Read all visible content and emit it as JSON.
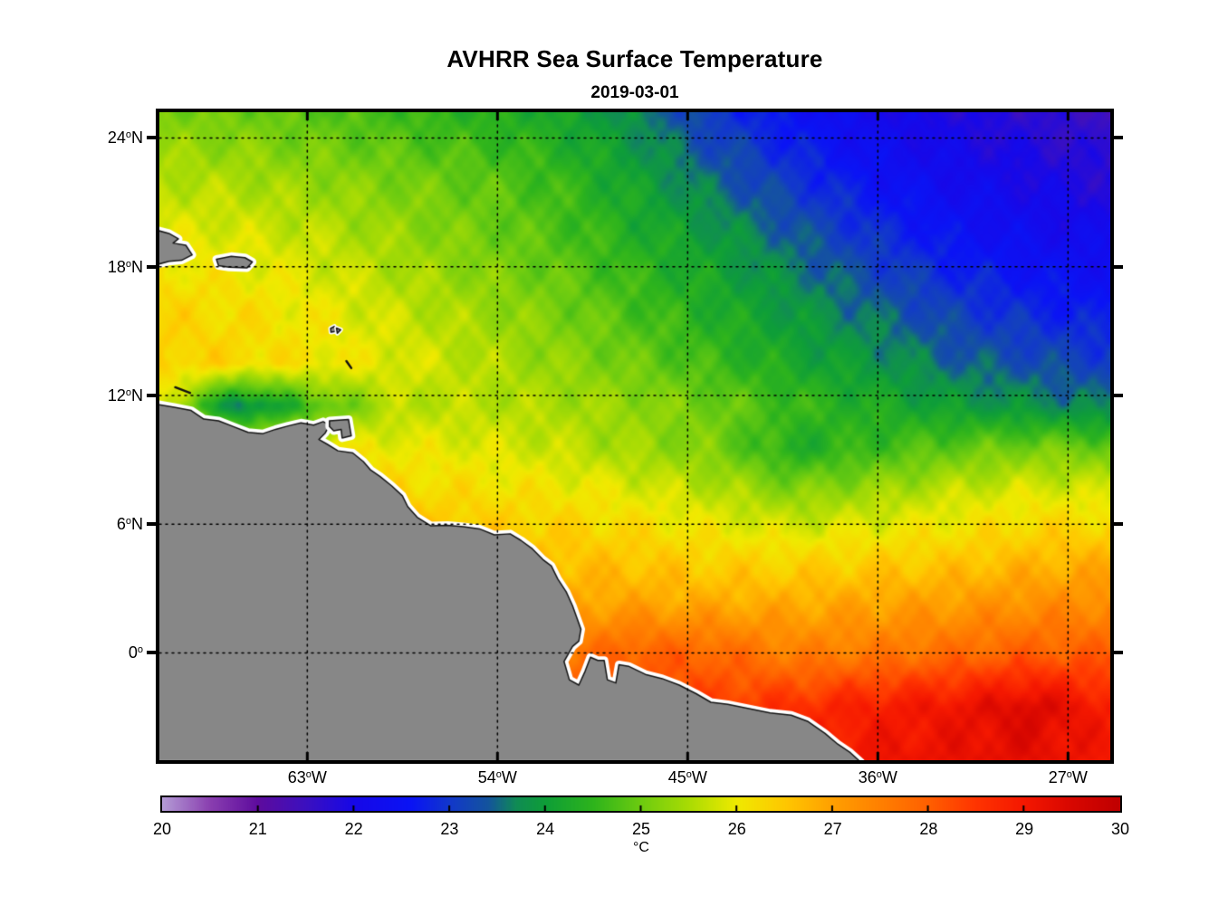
{
  "figure": {
    "title": "AVHRR Sea Surface Temperature",
    "subtitle": "2019-03-01"
  },
  "axes": {
    "lon_range": [
      -70,
      -25
    ],
    "lat_range": [
      -5,
      25.2
    ],
    "deg_symbol": "o",
    "x_ticks": [
      {
        "num": "63",
        "suffix": "W",
        "lon": -63
      },
      {
        "num": "54",
        "suffix": "W",
        "lon": -54
      },
      {
        "num": "45",
        "suffix": "W",
        "lon": -45
      },
      {
        "num": "36",
        "suffix": "W",
        "lon": -36
      },
      {
        "num": "27",
        "suffix": "W",
        "lon": -27
      }
    ],
    "y_ticks": [
      {
        "num": "24",
        "suffix": "N",
        "lat": 24
      },
      {
        "num": "18",
        "suffix": "N",
        "lat": 18
      },
      {
        "num": "12",
        "suffix": "N",
        "lat": 12
      },
      {
        "num": "6",
        "suffix": "N",
        "lat": 6
      },
      {
        "num": "0",
        "suffix": "",
        "lat": 0
      }
    ]
  },
  "colorbar": {
    "min": 20,
    "max": 30,
    "tick_labels": [
      "20",
      "21",
      "22",
      "23",
      "24",
      "25",
      "26",
      "27",
      "28",
      "29",
      "30"
    ],
    "inner_tick_values": [
      21,
      22,
      23,
      24,
      25,
      26,
      27,
      28,
      29
    ],
    "unit": "°C"
  },
  "colors": {
    "background": "#ffffff",
    "text": "#000000",
    "land_fill": "#878787",
    "land_outline": "#141414",
    "coast_buffer": "#ffffff",
    "gridline": "#000000",
    "axis": "#000000"
  },
  "colormap_stops": [
    [
      20.0,
      "#b49cd6"
    ],
    [
      20.5,
      "#8a3fb0"
    ],
    [
      21.0,
      "#5e0c9e"
    ],
    [
      21.5,
      "#3c10c0"
    ],
    [
      22.0,
      "#1708e8"
    ],
    [
      22.6,
      "#0a14f5"
    ],
    [
      23.0,
      "#1238cc"
    ],
    [
      23.4,
      "#14549e"
    ],
    [
      23.7,
      "#108c54"
    ],
    [
      24.0,
      "#0e9e38"
    ],
    [
      24.5,
      "#2eb41c"
    ],
    [
      25.0,
      "#6ecc10"
    ],
    [
      25.5,
      "#aadc04"
    ],
    [
      26.0,
      "#f0ea00"
    ],
    [
      26.5,
      "#ffc800"
    ],
    [
      27.0,
      "#ffa000"
    ],
    [
      27.5,
      "#ff8000"
    ],
    [
      28.0,
      "#ff6000"
    ],
    [
      28.5,
      "#ff3400"
    ],
    [
      29.0,
      "#f51800"
    ],
    [
      29.5,
      "#d80700"
    ],
    [
      30.0,
      "#c00000"
    ]
  ],
  "chart_data": {
    "type": "heatmap",
    "title": "AVHRR Sea Surface Temperature",
    "date": "2019-03-01",
    "units": "°C",
    "value_range": [
      20,
      30
    ],
    "lon": [
      -70,
      -66.25,
      -62.5,
      -58.75,
      -55,
      -51.25,
      -47.5,
      -43.75,
      -40,
      -36.25,
      -32.5,
      -28.75,
      -25
    ],
    "lat": [
      25.2,
      22,
      19,
      16,
      13.5,
      11.5,
      9.5,
      7.5,
      5,
      2.5,
      0,
      -2.5,
      -5
    ],
    "sst": [
      [
        25.1,
        25.0,
        24.8,
        24.6,
        24.4,
        24.2,
        23.7,
        23.0,
        22.5,
        22.1,
        21.9,
        21.7,
        21.5
      ],
      [
        25.6,
        25.5,
        25.3,
        25.1,
        24.9,
        24.6,
        24.1,
        23.5,
        23.0,
        22.5,
        22.2,
        22.0,
        21.8
      ],
      [
        26.0,
        25.9,
        25.7,
        25.4,
        25.1,
        24.8,
        24.4,
        24.0,
        23.5,
        23.0,
        22.6,
        22.3,
        22.2
      ],
      [
        26.3,
        26.2,
        26.0,
        25.7,
        25.4,
        25.1,
        24.7,
        24.3,
        23.9,
        23.5,
        23.1,
        22.8,
        22.6
      ],
      [
        26.4,
        26.3,
        26.1,
        25.9,
        25.6,
        25.3,
        25.0,
        24.6,
        24.2,
        23.9,
        23.5,
        23.3,
        23.1
      ],
      [
        25.9,
        23.5,
        24.7,
        25.6,
        25.6,
        25.5,
        25.3,
        25.0,
        24.6,
        24.3,
        24.0,
        23.8,
        23.6
      ],
      [
        26.3,
        26.2,
        26.1,
        26.0,
        25.9,
        25.7,
        25.4,
        25.1,
        24.3,
        24.6,
        24.9,
        25.1,
        25.0
      ],
      [
        26.6,
        26.5,
        26.4,
        26.3,
        26.2,
        26.1,
        25.9,
        25.6,
        25.2,
        25.4,
        25.7,
        25.9,
        25.8
      ],
      [
        27.0,
        26.9,
        26.8,
        26.7,
        26.6,
        26.5,
        26.4,
        26.2,
        26.1,
        26.2,
        26.3,
        26.5,
        26.6
      ],
      [
        27.2,
        27.1,
        27.1,
        27.0,
        26.9,
        26.9,
        26.9,
        26.8,
        26.8,
        26.9,
        27.0,
        27.2,
        27.3
      ],
      [
        27.4,
        27.4,
        27.3,
        27.3,
        27.3,
        27.6,
        28.0,
        27.9,
        27.5,
        27.6,
        27.8,
        28.0,
        28.0
      ],
      [
        27.6,
        27.6,
        27.7,
        27.7,
        27.8,
        28.0,
        28.3,
        28.4,
        28.6,
        28.9,
        29.1,
        29.5,
        28.9
      ],
      [
        27.8,
        27.8,
        27.9,
        28.0,
        28.1,
        28.3,
        28.5,
        28.7,
        28.9,
        29.1,
        29.2,
        29.3,
        29.0
      ]
    ],
    "land_polygons": {
      "south_america": [
        [
          -70.3,
          11.62
        ],
        [
          -69.3,
          11.45
        ],
        [
          -68.5,
          11.3
        ],
        [
          -67.9,
          10.9
        ],
        [
          -67.2,
          10.82
        ],
        [
          -66.5,
          10.55
        ],
        [
          -65.8,
          10.28
        ],
        [
          -65.1,
          10.22
        ],
        [
          -64.5,
          10.42
        ],
        [
          -63.9,
          10.58
        ],
        [
          -63.3,
          10.72
        ],
        [
          -62.7,
          10.62
        ],
        [
          -62.25,
          10.78
        ],
        [
          -61.95,
          10.62
        ],
        [
          -62.15,
          10.25
        ],
        [
          -62.45,
          9.95
        ],
        [
          -62.05,
          9.72
        ],
        [
          -61.55,
          9.42
        ],
        [
          -60.85,
          9.32
        ],
        [
          -60.35,
          8.92
        ],
        [
          -60.0,
          8.52
        ],
        [
          -59.55,
          8.22
        ],
        [
          -59.0,
          7.78
        ],
        [
          -58.5,
          7.32
        ],
        [
          -58.25,
          6.82
        ],
        [
          -57.8,
          6.32
        ],
        [
          -57.15,
          5.92
        ],
        [
          -56.35,
          5.95
        ],
        [
          -55.6,
          5.88
        ],
        [
          -54.85,
          5.78
        ],
        [
          -54.15,
          5.5
        ],
        [
          -53.4,
          5.55
        ],
        [
          -52.9,
          5.25
        ],
        [
          -52.35,
          4.85
        ],
        [
          -51.85,
          4.35
        ],
        [
          -51.45,
          4.05
        ],
        [
          -51.15,
          3.45
        ],
        [
          -50.75,
          2.85
        ],
        [
          -50.45,
          2.2
        ],
        [
          -50.25,
          1.65
        ],
        [
          -50.05,
          1.1
        ],
        [
          -50.15,
          0.55
        ],
        [
          -50.45,
          0.3
        ],
        [
          -50.85,
          -0.4
        ],
        [
          -50.6,
          -1.25
        ],
        [
          -50.15,
          -1.5
        ],
        [
          -49.85,
          -0.85
        ],
        [
          -49.6,
          -0.2
        ],
        [
          -49.25,
          -0.35
        ],
        [
          -48.95,
          -0.35
        ],
        [
          -48.8,
          -1.25
        ],
        [
          -48.4,
          -1.4
        ],
        [
          -48.25,
          -0.55
        ],
        [
          -47.8,
          -0.62
        ],
        [
          -47.0,
          -1.0
        ],
        [
          -46.2,
          -1.2
        ],
        [
          -45.4,
          -1.5
        ],
        [
          -44.6,
          -1.9
        ],
        [
          -43.9,
          -2.3
        ],
        [
          -43.1,
          -2.4
        ],
        [
          -42.1,
          -2.6
        ],
        [
          -41.1,
          -2.8
        ],
        [
          -40.1,
          -2.9
        ],
        [
          -39.3,
          -3.2
        ],
        [
          -38.5,
          -3.75
        ],
        [
          -37.9,
          -4.25
        ],
        [
          -37.3,
          -4.65
        ],
        [
          -36.8,
          -5.1
        ],
        [
          -36.5,
          -5.5
        ],
        [
          -70.5,
          -5.5
        ]
      ],
      "hispaniola_tip": [
        [
          -70.3,
          19.75
        ],
        [
          -69.55,
          19.55
        ],
        [
          -69.1,
          19.3
        ],
        [
          -69.35,
          19.1
        ],
        [
          -68.75,
          19.0
        ],
        [
          -68.45,
          18.55
        ],
        [
          -68.95,
          18.3
        ],
        [
          -69.55,
          18.25
        ],
        [
          -70.3,
          18.05
        ]
      ],
      "puerto_rico": [
        [
          -67.3,
          18.35
        ],
        [
          -66.6,
          18.48
        ],
        [
          -65.95,
          18.42
        ],
        [
          -65.6,
          18.22
        ],
        [
          -65.85,
          17.95
        ],
        [
          -66.7,
          17.98
        ],
        [
          -67.2,
          18.05
        ]
      ],
      "trinidad": [
        [
          -61.95,
          10.82
        ],
        [
          -61.05,
          10.88
        ],
        [
          -60.92,
          10.12
        ],
        [
          -61.35,
          10.02
        ],
        [
          -61.4,
          10.42
        ],
        [
          -61.75,
          10.35
        ],
        [
          -61.95,
          10.55
        ]
      ],
      "guadeloupe_west": [
        [
          -61.9,
          15.12
        ],
        [
          -61.72,
          15.22
        ],
        [
          -61.68,
          14.98
        ],
        [
          -61.88,
          14.95
        ]
      ],
      "guadeloupe_east": [
        [
          -61.62,
          15.14
        ],
        [
          -61.42,
          15.06
        ],
        [
          -61.58,
          14.9
        ]
      ]
    },
    "island_dashes": [
      [
        [
          -69.25,
          12.38
        ],
        [
          -68.55,
          12.12
        ]
      ],
      [
        [
          -61.15,
          13.6
        ],
        [
          -60.92,
          13.28
        ]
      ]
    ]
  }
}
